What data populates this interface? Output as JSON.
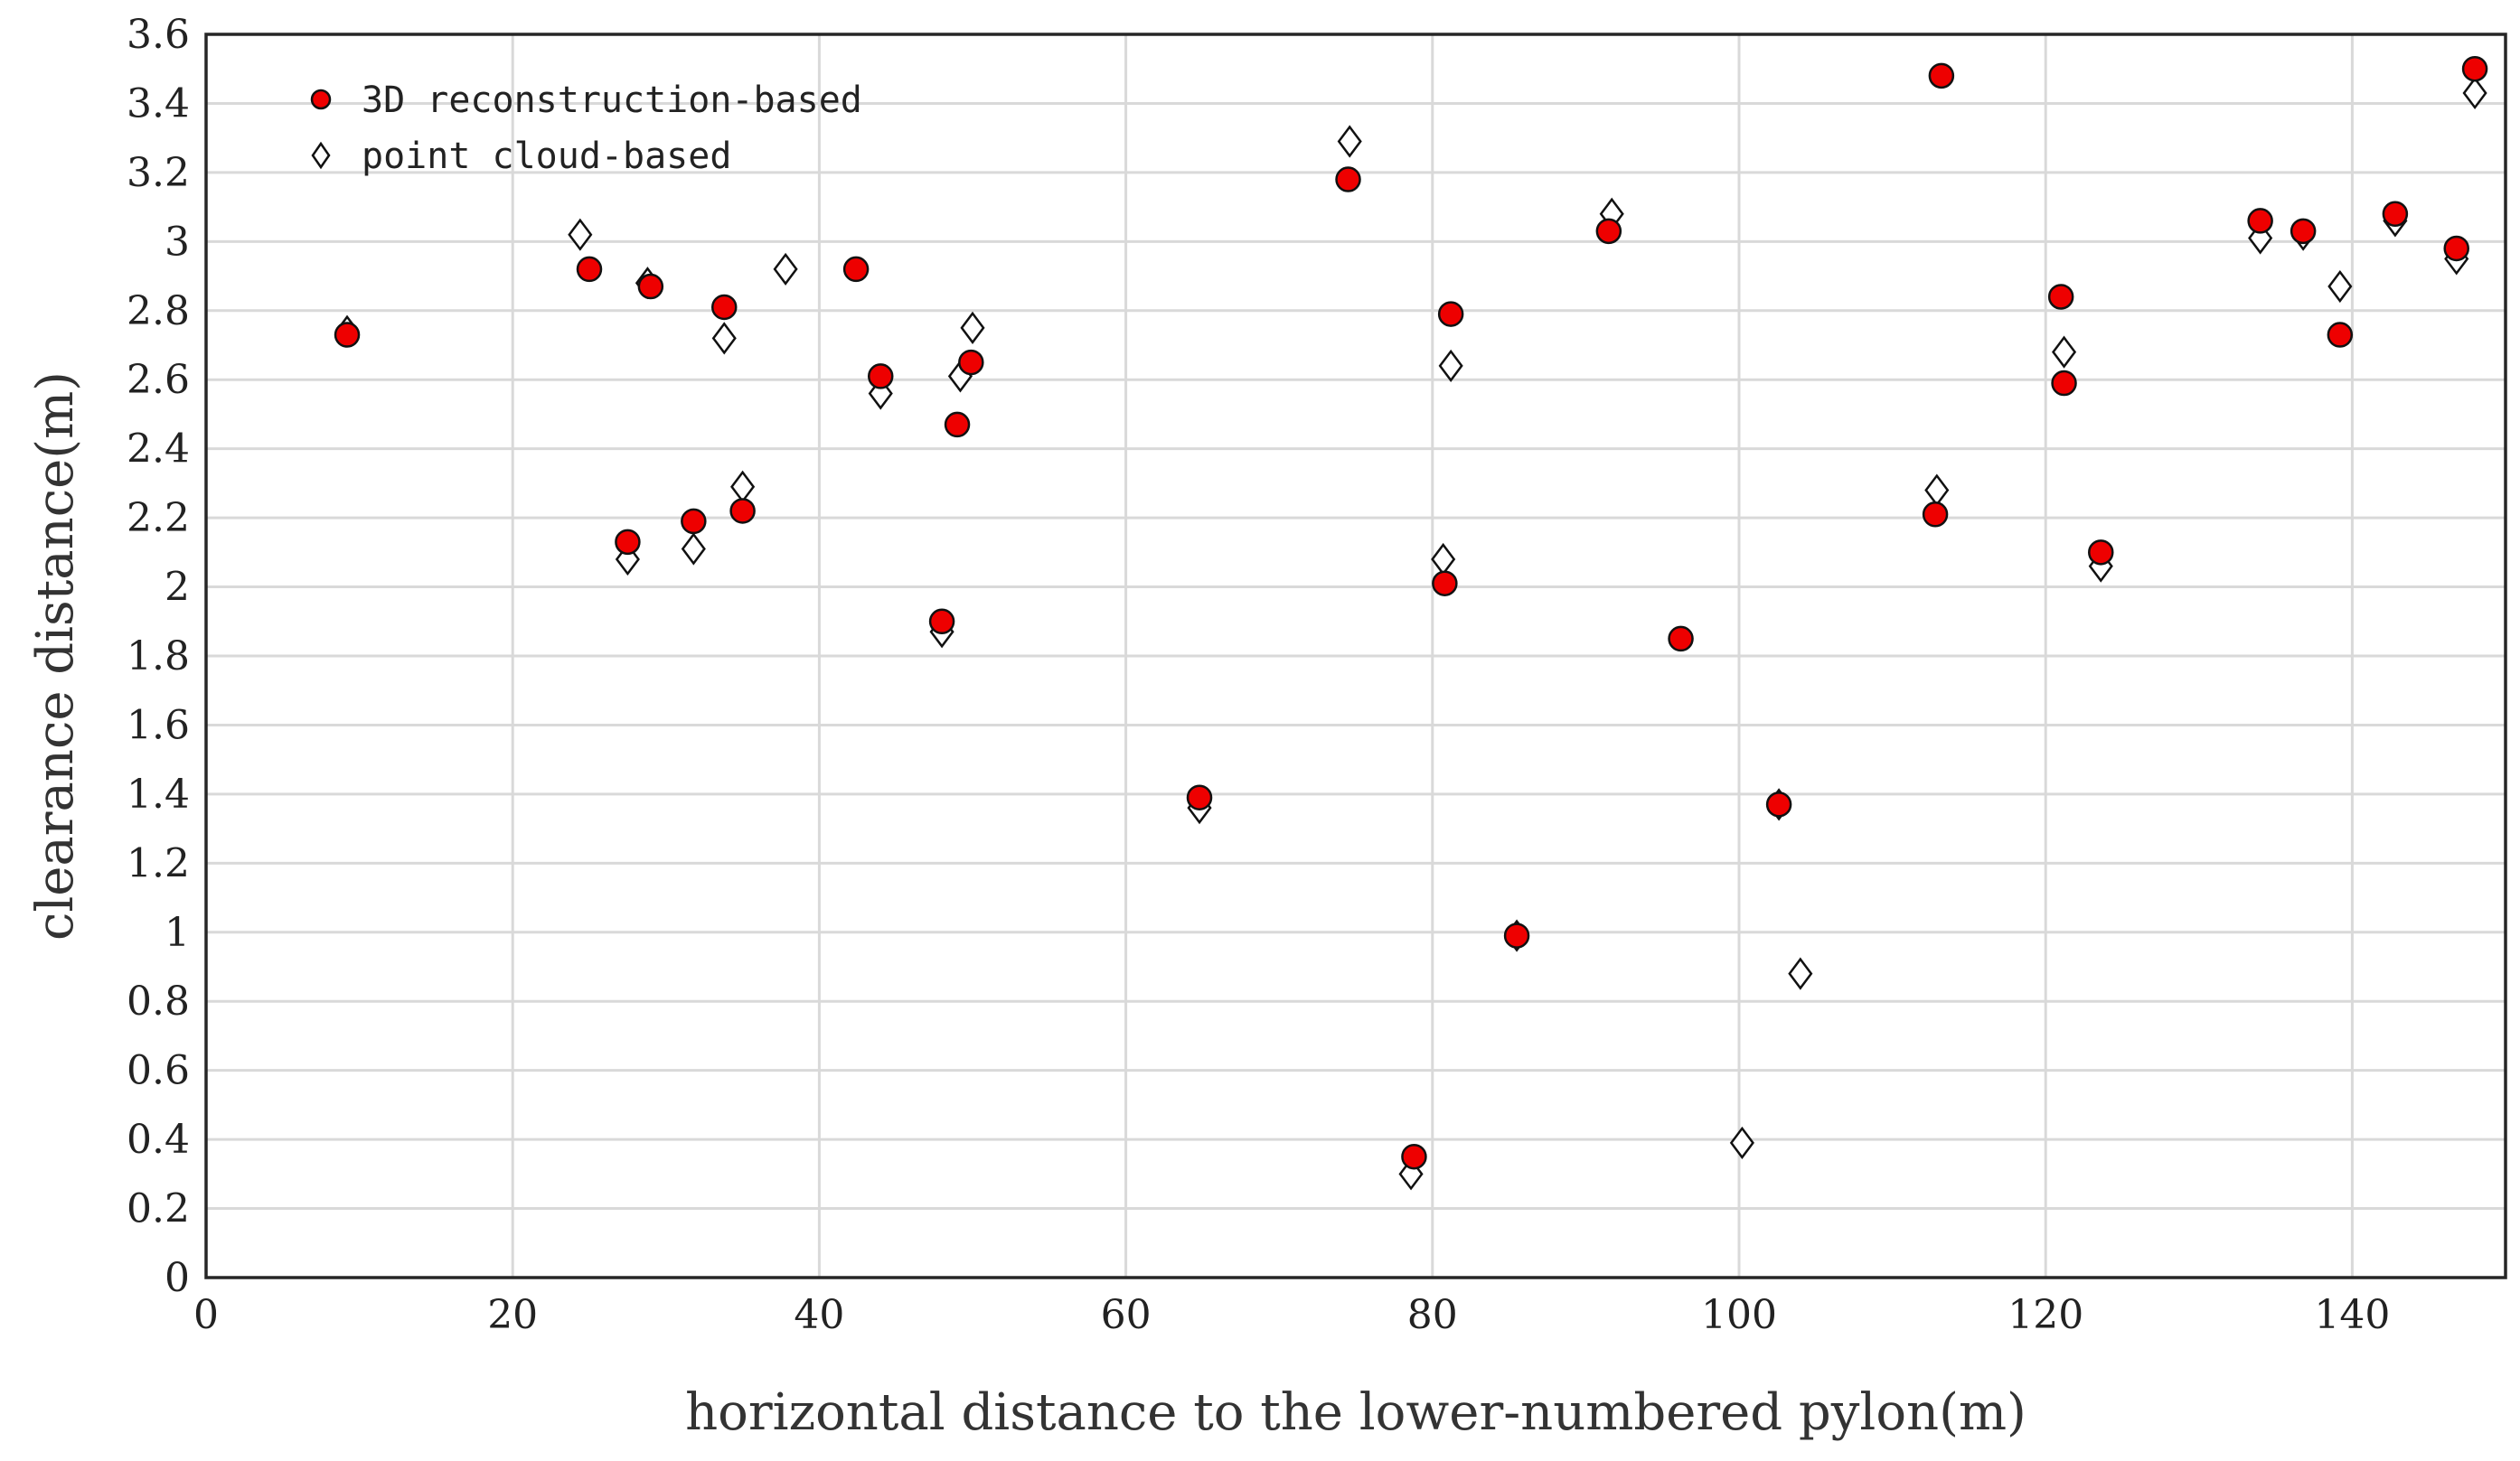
{
  "chart_data": {
    "type": "scatter",
    "title": "",
    "xlabel": "horizontal distance to the lower-numbered pylon(m)",
    "ylabel": "clearance distance(m)",
    "xlim": [
      0,
      150
    ],
    "ylim": [
      0,
      3.6
    ],
    "xticks": [
      "0",
      "20",
      "40",
      "60",
      "80",
      "100",
      "120",
      "140"
    ],
    "yticks": [
      "0",
      "0.2",
      "0.4",
      "0.6",
      "0.8",
      "1",
      "1.2",
      "1.4",
      "1.6",
      "1.8",
      "2",
      "2.2",
      "2.4",
      "2.6",
      "2.8",
      "3",
      "3.2",
      "3.4",
      "3.6"
    ],
    "grid": true,
    "legend_position": "top-left",
    "series": [
      {
        "name": "3D reconstruction-based",
        "marker": "circle",
        "color": "#ee0000",
        "points": [
          [
            9.2,
            2.73
          ],
          [
            25.0,
            2.92
          ],
          [
            27.5,
            2.13
          ],
          [
            29.0,
            2.87
          ],
          [
            31.8,
            2.19
          ],
          [
            33.8,
            2.81
          ],
          [
            35.0,
            2.22
          ],
          [
            42.4,
            2.92
          ],
          [
            44.0,
            2.61
          ],
          [
            48.0,
            1.9
          ],
          [
            49.0,
            2.47
          ],
          [
            49.9,
            2.65
          ],
          [
            64.8,
            1.39
          ],
          [
            74.5,
            3.18
          ],
          [
            78.8,
            0.35
          ],
          [
            80.8,
            2.01
          ],
          [
            81.2,
            2.79
          ],
          [
            85.5,
            0.99
          ],
          [
            91.5,
            3.03
          ],
          [
            96.2,
            1.85
          ],
          [
            102.6,
            1.37
          ],
          [
            112.8,
            2.21
          ],
          [
            113.2,
            3.48
          ],
          [
            121.0,
            2.84
          ],
          [
            121.2,
            2.59
          ],
          [
            123.6,
            2.1
          ],
          [
            134.0,
            3.06
          ],
          [
            136.8,
            3.03
          ],
          [
            139.2,
            2.73
          ],
          [
            142.8,
            3.08
          ],
          [
            146.8,
            2.98
          ],
          [
            148.0,
            3.5
          ]
        ]
      },
      {
        "name": "point cloud-based",
        "marker": "diamond",
        "color": "#ffffff",
        "points": [
          [
            9.2,
            2.74
          ],
          [
            24.4,
            3.02
          ],
          [
            27.5,
            2.08
          ],
          [
            28.8,
            2.88
          ],
          [
            31.8,
            2.11
          ],
          [
            33.8,
            2.72
          ],
          [
            35.0,
            2.29
          ],
          [
            37.8,
            2.92
          ],
          [
            44.0,
            2.56
          ],
          [
            48.0,
            1.87
          ],
          [
            49.2,
            2.61
          ],
          [
            50.0,
            2.75
          ],
          [
            64.8,
            1.36
          ],
          [
            74.6,
            3.29
          ],
          [
            78.6,
            0.3
          ],
          [
            80.7,
            2.08
          ],
          [
            81.2,
            2.64
          ],
          [
            85.5,
            0.99
          ],
          [
            91.7,
            3.08
          ],
          [
            100.2,
            0.39
          ],
          [
            102.6,
            1.37
          ],
          [
            104.0,
            0.88
          ],
          [
            112.9,
            2.28
          ],
          [
            121.2,
            2.68
          ],
          [
            123.6,
            2.06
          ],
          [
            134.0,
            3.01
          ],
          [
            136.8,
            3.02
          ],
          [
            139.2,
            2.87
          ],
          [
            142.8,
            3.06
          ],
          [
            146.8,
            2.95
          ],
          [
            148.0,
            3.43
          ]
        ]
      }
    ]
  }
}
